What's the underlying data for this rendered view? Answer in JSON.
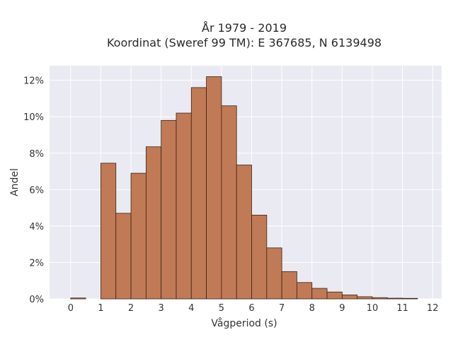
{
  "chart_data": {
    "type": "bar",
    "title_line1": "År 1979 - 2019",
    "title_line2": "Koordinat (Sweref 99 TM): E 367685, N 6139498",
    "xlabel": "Vågperiod (s)",
    "ylabel": "Andel",
    "xlim": [
      -0.7,
      12.3
    ],
    "ylim": [
      0,
      12.8
    ],
    "x_ticks": [
      0,
      1,
      2,
      3,
      4,
      5,
      6,
      7,
      8,
      9,
      10,
      11,
      12
    ],
    "y_ticks": [
      0,
      2,
      4,
      6,
      8,
      10,
      12
    ],
    "y_tick_labels": [
      "0%",
      "2%",
      "4%",
      "6%",
      "8%",
      "10%",
      "12%"
    ],
    "bin_width": 0.5,
    "bin_starts": [
      0,
      0.5,
      1,
      1.5,
      2,
      2.5,
      3,
      3.5,
      4,
      4.5,
      5,
      5.5,
      6,
      6.5,
      7,
      7.5,
      8,
      8.5,
      9,
      9.5,
      10,
      10.5,
      11,
      11.5
    ],
    "values": [
      0.05,
      0,
      7.45,
      4.7,
      6.9,
      8.35,
      9.8,
      10.2,
      11.6,
      12.2,
      10.6,
      7.35,
      4.6,
      2.8,
      1.5,
      0.9,
      0.58,
      0.38,
      0.22,
      0.12,
      0.07,
      0.04,
      0.03,
      0
    ],
    "grid": true,
    "colors": {
      "bar": "#c07a55",
      "edge": "#3a2418",
      "background": "#eaeaf2",
      "grid": "#ffffff"
    }
  }
}
